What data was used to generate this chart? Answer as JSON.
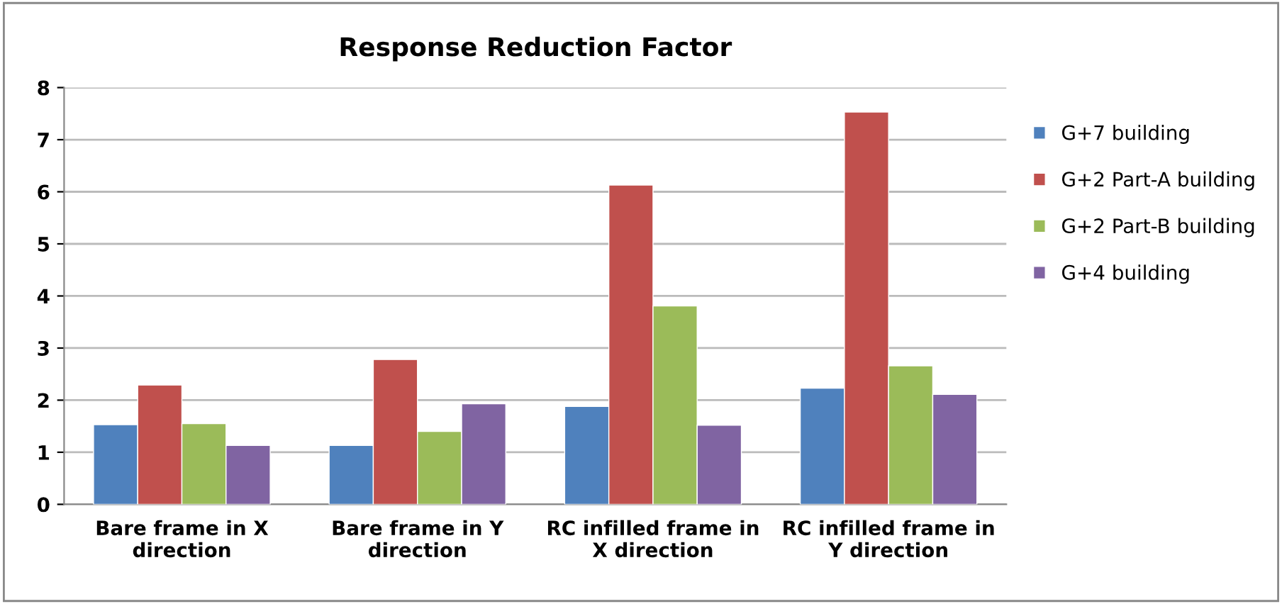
{
  "chart_data": {
    "type": "bar",
    "title": "Response Reduction Factor",
    "categories": [
      "Bare frame in X direction",
      "Bare frame in Y direction",
      "RC infilled frame in X direction",
      "RC infilled frame in Y direction"
    ],
    "series": [
      {
        "name": "G+7 building",
        "color": "#4f81bd",
        "values": [
          1.53,
          1.13,
          1.88,
          2.23
        ]
      },
      {
        "name": "G+2 Part-A building",
        "color": "#c0504d",
        "values": [
          2.29,
          2.78,
          6.13,
          7.53
        ]
      },
      {
        "name": "G+2 Part-B building",
        "color": "#9bbb59",
        "values": [
          1.55,
          1.4,
          3.81,
          2.66
        ]
      },
      {
        "name": "G+4 building",
        "color": "#8064a2",
        "values": [
          1.13,
          1.93,
          1.52,
          2.11
        ]
      }
    ],
    "ylim": [
      0,
      8
    ],
    "yticks": [
      0,
      1,
      2,
      3,
      4,
      5,
      6,
      7,
      8
    ],
    "grid": "y",
    "legend": "right"
  }
}
